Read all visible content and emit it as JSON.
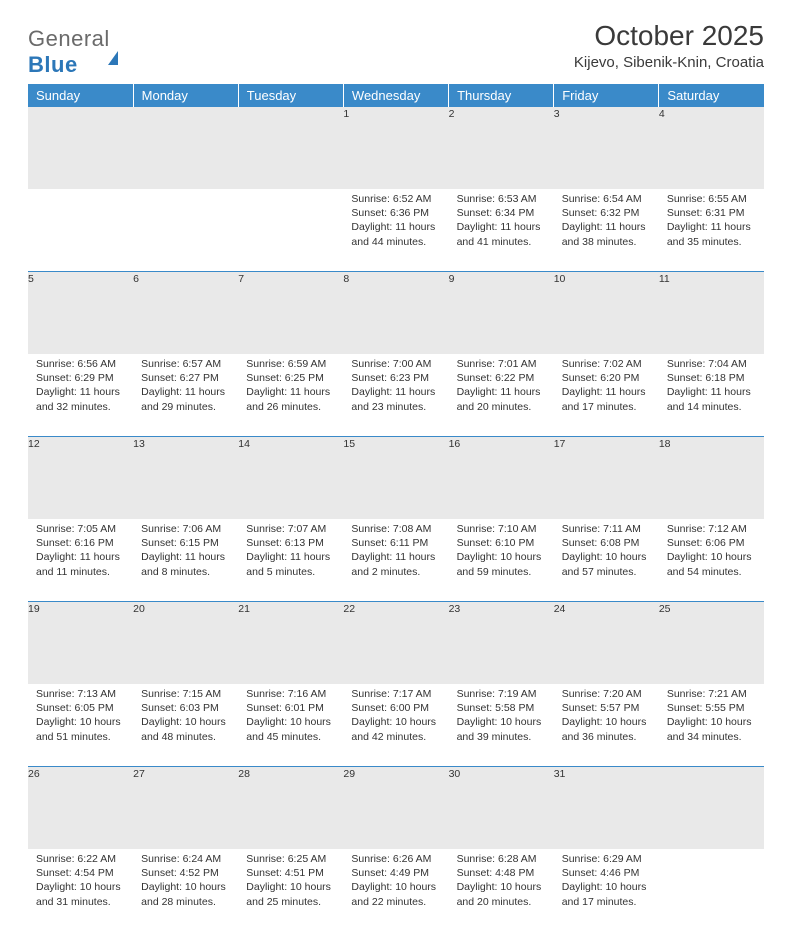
{
  "brand": {
    "left": "General",
    "right": "Blue"
  },
  "title": "October 2025",
  "location": "Kijevo, Sibenik-Knin, Croatia",
  "header_bg": "#3a8ac9",
  "daynum_bg": "#e9e9e9",
  "rule_color": "#3a8ac9",
  "text_color": "#333333",
  "weekdays": [
    "Sunday",
    "Monday",
    "Tuesday",
    "Wednesday",
    "Thursday",
    "Friday",
    "Saturday"
  ],
  "weeks": [
    [
      null,
      null,
      null,
      {
        "n": "1",
        "sr": "Sunrise: 6:52 AM",
        "ss": "Sunset: 6:36 PM",
        "d1": "Daylight: 11 hours",
        "d2": "and 44 minutes."
      },
      {
        "n": "2",
        "sr": "Sunrise: 6:53 AM",
        "ss": "Sunset: 6:34 PM",
        "d1": "Daylight: 11 hours",
        "d2": "and 41 minutes."
      },
      {
        "n": "3",
        "sr": "Sunrise: 6:54 AM",
        "ss": "Sunset: 6:32 PM",
        "d1": "Daylight: 11 hours",
        "d2": "and 38 minutes."
      },
      {
        "n": "4",
        "sr": "Sunrise: 6:55 AM",
        "ss": "Sunset: 6:31 PM",
        "d1": "Daylight: 11 hours",
        "d2": "and 35 minutes."
      }
    ],
    [
      {
        "n": "5",
        "sr": "Sunrise: 6:56 AM",
        "ss": "Sunset: 6:29 PM",
        "d1": "Daylight: 11 hours",
        "d2": "and 32 minutes."
      },
      {
        "n": "6",
        "sr": "Sunrise: 6:57 AM",
        "ss": "Sunset: 6:27 PM",
        "d1": "Daylight: 11 hours",
        "d2": "and 29 minutes."
      },
      {
        "n": "7",
        "sr": "Sunrise: 6:59 AM",
        "ss": "Sunset: 6:25 PM",
        "d1": "Daylight: 11 hours",
        "d2": "and 26 minutes."
      },
      {
        "n": "8",
        "sr": "Sunrise: 7:00 AM",
        "ss": "Sunset: 6:23 PM",
        "d1": "Daylight: 11 hours",
        "d2": "and 23 minutes."
      },
      {
        "n": "9",
        "sr": "Sunrise: 7:01 AM",
        "ss": "Sunset: 6:22 PM",
        "d1": "Daylight: 11 hours",
        "d2": "and 20 minutes."
      },
      {
        "n": "10",
        "sr": "Sunrise: 7:02 AM",
        "ss": "Sunset: 6:20 PM",
        "d1": "Daylight: 11 hours",
        "d2": "and 17 minutes."
      },
      {
        "n": "11",
        "sr": "Sunrise: 7:04 AM",
        "ss": "Sunset: 6:18 PM",
        "d1": "Daylight: 11 hours",
        "d2": "and 14 minutes."
      }
    ],
    [
      {
        "n": "12",
        "sr": "Sunrise: 7:05 AM",
        "ss": "Sunset: 6:16 PM",
        "d1": "Daylight: 11 hours",
        "d2": "and 11 minutes."
      },
      {
        "n": "13",
        "sr": "Sunrise: 7:06 AM",
        "ss": "Sunset: 6:15 PM",
        "d1": "Daylight: 11 hours",
        "d2": "and 8 minutes."
      },
      {
        "n": "14",
        "sr": "Sunrise: 7:07 AM",
        "ss": "Sunset: 6:13 PM",
        "d1": "Daylight: 11 hours",
        "d2": "and 5 minutes."
      },
      {
        "n": "15",
        "sr": "Sunrise: 7:08 AM",
        "ss": "Sunset: 6:11 PM",
        "d1": "Daylight: 11 hours",
        "d2": "and 2 minutes."
      },
      {
        "n": "16",
        "sr": "Sunrise: 7:10 AM",
        "ss": "Sunset: 6:10 PM",
        "d1": "Daylight: 10 hours",
        "d2": "and 59 minutes."
      },
      {
        "n": "17",
        "sr": "Sunrise: 7:11 AM",
        "ss": "Sunset: 6:08 PM",
        "d1": "Daylight: 10 hours",
        "d2": "and 57 minutes."
      },
      {
        "n": "18",
        "sr": "Sunrise: 7:12 AM",
        "ss": "Sunset: 6:06 PM",
        "d1": "Daylight: 10 hours",
        "d2": "and 54 minutes."
      }
    ],
    [
      {
        "n": "19",
        "sr": "Sunrise: 7:13 AM",
        "ss": "Sunset: 6:05 PM",
        "d1": "Daylight: 10 hours",
        "d2": "and 51 minutes."
      },
      {
        "n": "20",
        "sr": "Sunrise: 7:15 AM",
        "ss": "Sunset: 6:03 PM",
        "d1": "Daylight: 10 hours",
        "d2": "and 48 minutes."
      },
      {
        "n": "21",
        "sr": "Sunrise: 7:16 AM",
        "ss": "Sunset: 6:01 PM",
        "d1": "Daylight: 10 hours",
        "d2": "and 45 minutes."
      },
      {
        "n": "22",
        "sr": "Sunrise: 7:17 AM",
        "ss": "Sunset: 6:00 PM",
        "d1": "Daylight: 10 hours",
        "d2": "and 42 minutes."
      },
      {
        "n": "23",
        "sr": "Sunrise: 7:19 AM",
        "ss": "Sunset: 5:58 PM",
        "d1": "Daylight: 10 hours",
        "d2": "and 39 minutes."
      },
      {
        "n": "24",
        "sr": "Sunrise: 7:20 AM",
        "ss": "Sunset: 5:57 PM",
        "d1": "Daylight: 10 hours",
        "d2": "and 36 minutes."
      },
      {
        "n": "25",
        "sr": "Sunrise: 7:21 AM",
        "ss": "Sunset: 5:55 PM",
        "d1": "Daylight: 10 hours",
        "d2": "and 34 minutes."
      }
    ],
    [
      {
        "n": "26",
        "sr": "Sunrise: 6:22 AM",
        "ss": "Sunset: 4:54 PM",
        "d1": "Daylight: 10 hours",
        "d2": "and 31 minutes."
      },
      {
        "n": "27",
        "sr": "Sunrise: 6:24 AM",
        "ss": "Sunset: 4:52 PM",
        "d1": "Daylight: 10 hours",
        "d2": "and 28 minutes."
      },
      {
        "n": "28",
        "sr": "Sunrise: 6:25 AM",
        "ss": "Sunset: 4:51 PM",
        "d1": "Daylight: 10 hours",
        "d2": "and 25 minutes."
      },
      {
        "n": "29",
        "sr": "Sunrise: 6:26 AM",
        "ss": "Sunset: 4:49 PM",
        "d1": "Daylight: 10 hours",
        "d2": "and 22 minutes."
      },
      {
        "n": "30",
        "sr": "Sunrise: 6:28 AM",
        "ss": "Sunset: 4:48 PM",
        "d1": "Daylight: 10 hours",
        "d2": "and 20 minutes."
      },
      {
        "n": "31",
        "sr": "Sunrise: 6:29 AM",
        "ss": "Sunset: 4:46 PM",
        "d1": "Daylight: 10 hours",
        "d2": "and 17 minutes."
      },
      null
    ]
  ]
}
